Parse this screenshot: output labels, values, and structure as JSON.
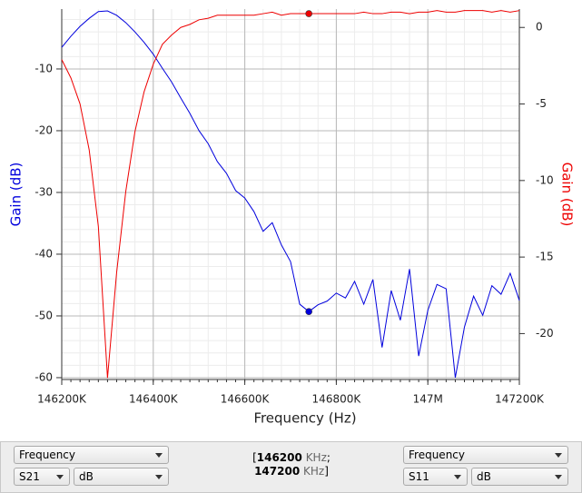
{
  "chart_data": {
    "type": "line",
    "x_label": "Frequency (Hz)",
    "y_label": "Gain (dB)",
    "y2_label": "Gain (dB)",
    "x": [
      146200,
      146220,
      146240,
      146260,
      146280,
      146300,
      146320,
      146340,
      146360,
      146380,
      146400,
      146420,
      146440,
      146460,
      146480,
      146500,
      146520,
      146540,
      146560,
      146580,
      146600,
      146620,
      146640,
      146660,
      146680,
      146700,
      146720,
      146740,
      146760,
      146780,
      146800,
      146820,
      146840,
      146860,
      146880,
      146900,
      146920,
      146940,
      146960,
      146980,
      147000,
      147020,
      147040,
      147060,
      147080,
      147100,
      147120,
      147140,
      147160,
      147180,
      147200
    ],
    "series": [
      {
        "name": "S21",
        "color": "#0000dd",
        "axis": "y",
        "values": [
          -6.5,
          -4.7,
          -3.1,
          -1.8,
          -0.7,
          -0.6,
          -1.3,
          -2.5,
          -4.0,
          -5.7,
          -7.6,
          -9.9,
          -12.1,
          -14.7,
          -17.2,
          -20.0,
          -22.1,
          -25.0,
          -26.9,
          -29.7,
          -30.9,
          -33.1,
          -36.3,
          -34.9,
          -38.5,
          -41.2,
          -48.1,
          -49.3,
          -48.2,
          -47.6,
          -46.3,
          -47.1,
          -44.4,
          -48.1,
          -44.1,
          -55.1,
          -45.9,
          -50.7,
          -42.4,
          -56.5,
          -49.1,
          -44.9,
          -45.6,
          -60.0,
          -51.8,
          -46.8,
          -49.9,
          -45.1,
          -46.5,
          -43.1,
          -47.5
        ]
      },
      {
        "name": "S11",
        "color": "#ee0000",
        "axis": "y2",
        "values": [
          -2.1,
          -3.3,
          -5.0,
          -8.0,
          -13.0,
          -22.9,
          -16.0,
          -10.7,
          -6.8,
          -4.2,
          -2.4,
          -1.1,
          -0.5,
          0,
          0.2,
          0.5,
          0.6,
          0.8,
          0.8,
          0.8,
          0.8,
          0.8,
          0.9,
          1.0,
          0.8,
          0.9,
          0.9,
          0.9,
          0.9,
          0.9,
          0.9,
          0.9,
          0.9,
          1.0,
          0.9,
          0.9,
          1.0,
          1.0,
          0.9,
          1.0,
          1.0,
          1.1,
          1.0,
          1.0,
          1.1,
          1.1,
          1.1,
          1.0,
          1.1,
          1.0,
          1.1
        ]
      }
    ],
    "marker": 146740,
    "xlim": [
      146200,
      147200
    ],
    "xticks": [
      {
        "value": 146200,
        "label": "146200K"
      },
      {
        "value": 146400,
        "label": "146400K"
      },
      {
        "value": 146600,
        "label": "146600K"
      },
      {
        "value": 146800,
        "label": "146800K"
      },
      {
        "value": 147000,
        "label": "147M"
      },
      {
        "value": 147200,
        "label": "147200K"
      }
    ],
    "ylim": [
      -60.3,
      -0.3
    ],
    "yticks": [
      -60,
      -50,
      -40,
      -30,
      -20,
      -10
    ],
    "y2lim": [
      -23,
      1.2
    ],
    "y2ticks": [
      -20,
      -15,
      -10,
      -5,
      0
    ],
    "grid": true
  },
  "controls": {
    "left": {
      "domain": "Frequency",
      "param": "S21",
      "unit": "dB"
    },
    "right": {
      "domain": "Frequency",
      "param": "S11",
      "unit": "dB"
    },
    "range": {
      "open": "[",
      "start": "146200",
      "start_unit": "KHz",
      "sep": ";",
      "end": "147200",
      "end_unit": "KHz",
      "close": "]"
    }
  }
}
